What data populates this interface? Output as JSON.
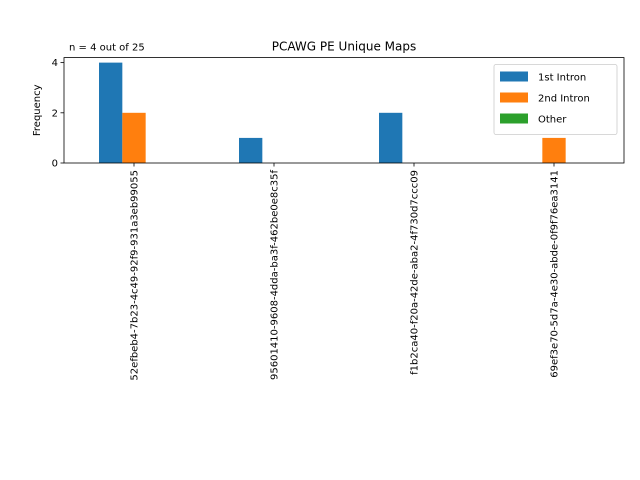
{
  "chart_data": {
    "type": "bar",
    "title": "PCAWG PE Unique Maps",
    "annotation": "n = 4 out of 25",
    "xlabel": "",
    "ylabel": "Frequency",
    "ylim": [
      0,
      4.2
    ],
    "yticks": [
      0,
      2,
      4
    ],
    "grid": false,
    "legend_position": "top-right",
    "categories": [
      "52efbeb4-7b23-4c49-92f9-931a3eb99055",
      "95601410-9608-4dda-ba3f-462be0e8c35f",
      "f1b2ca40-f20a-42de-aba2-4f730d7ccc09",
      "69ef3e70-5d7a-4e30-abde-0f9f76ea3141"
    ],
    "series": [
      {
        "name": "1st Intron",
        "color": "#1f77b4",
        "values": [
          4,
          1,
          2,
          0
        ]
      },
      {
        "name": "2nd Intron",
        "color": "#ff7f0e",
        "values": [
          2,
          0,
          0,
          1
        ]
      },
      {
        "name": "Other",
        "color": "#2ca02c",
        "values": [
          0,
          0,
          0,
          0
        ]
      }
    ]
  }
}
